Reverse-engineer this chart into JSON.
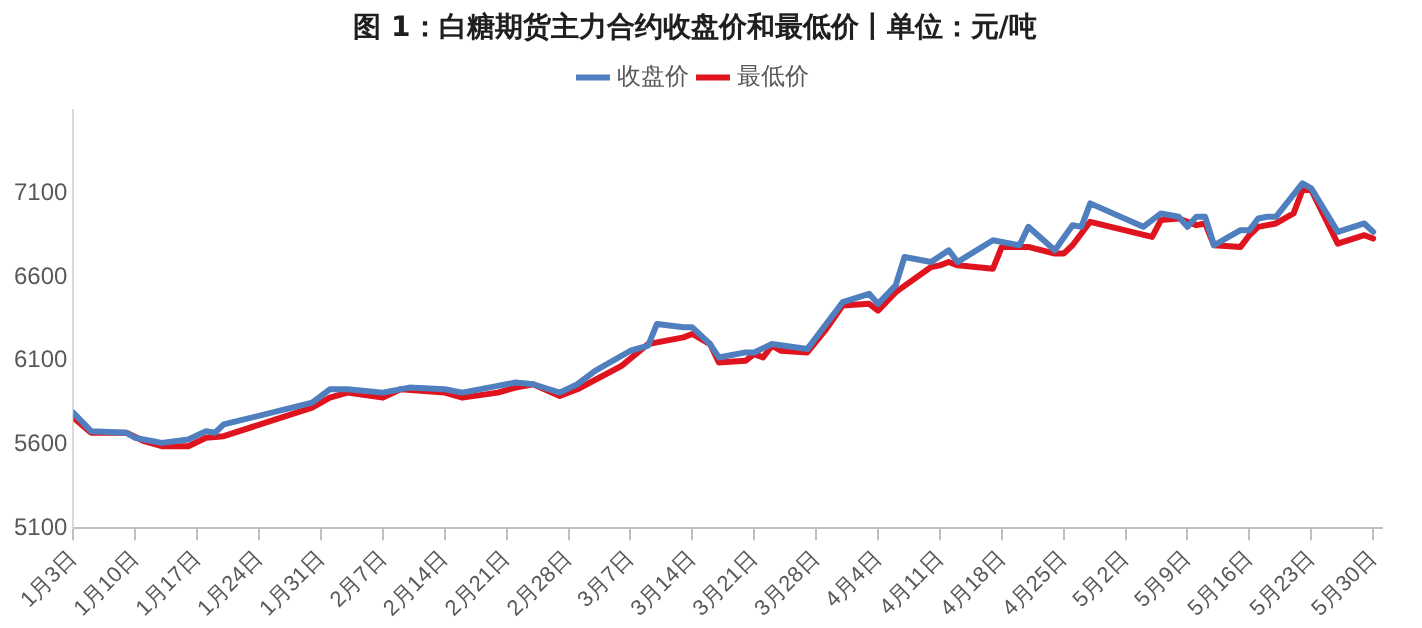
{
  "chart_data": {
    "type": "line",
    "title": "图 1：白糖期货主力合约收盘价和最低价丨单位：元/吨",
    "xlim": [
      "--01-03",
      "--05-31"
    ],
    "xticks": [
      {
        "value": "--01-03",
        "label": "1月3日"
      },
      {
        "value": "--01-10",
        "label": "1月10日"
      },
      {
        "value": "--01-17",
        "label": "1月17日"
      },
      {
        "value": "--01-24",
        "label": "1月24日"
      },
      {
        "value": "--01-31",
        "label": "1月31日"
      },
      {
        "value": "--02-07",
        "label": "2月7日"
      },
      {
        "value": "--02-14",
        "label": "2月14日"
      },
      {
        "value": "--02-21",
        "label": "2月21日"
      },
      {
        "value": "--02-28",
        "label": "2月28日"
      },
      {
        "value": "--03-07",
        "label": "3月7日"
      },
      {
        "value": "--03-14",
        "label": "3月14日"
      },
      {
        "value": "--03-21",
        "label": "3月21日"
      },
      {
        "value": "--03-28",
        "label": "3月28日"
      },
      {
        "value": "--04-04",
        "label": "4月4日"
      },
      {
        "value": "--04-11",
        "label": "4月11日"
      },
      {
        "value": "--04-18",
        "label": "4月18日"
      },
      {
        "value": "--04-25",
        "label": "4月25日"
      },
      {
        "value": "--05-02",
        "label": "5月2日"
      },
      {
        "value": "--05-09",
        "label": "5月9日"
      },
      {
        "value": "--05-16",
        "label": "5月16日"
      },
      {
        "value": "--05-23",
        "label": "5月23日"
      },
      {
        "value": "--05-30",
        "label": "5月30日"
      }
    ],
    "ylim": [
      5100,
      7600
    ],
    "yticks": [
      5100,
      5600,
      6100,
      6600,
      7100
    ],
    "grid": false,
    "legend": "top",
    "marker": "none",
    "line_style": "solid",
    "series": [
      {
        "name": "收盘价",
        "color": "#4f7fbf",
        "x": [
          "--01-03",
          "--01-05",
          "--01-09",
          "--01-10",
          "--01-12",
          "--01-13",
          "--01-16",
          "--01-18",
          "--01-19",
          "--01-20",
          "--01-30",
          "--02-01",
          "--02-03",
          "--02-07",
          "--02-10",
          "--02-14",
          "--02-16",
          "--02-20",
          "--02-22",
          "--02-24",
          "--02-27",
          "--03-01",
          "--03-03",
          "--03-07",
          "--03-09",
          "--03-10",
          "--03-13",
          "--03-14",
          "--03-16",
          "--03-17",
          "--03-20",
          "--03-21",
          "--03-23",
          "--03-27",
          "--03-31",
          "--04-03",
          "--04-04",
          "--04-06",
          "--04-07",
          "--04-10",
          "--04-12",
          "--04-13",
          "--04-17",
          "--04-20",
          "--04-21",
          "--04-24",
          "--04-26",
          "--04-27",
          "--04-28",
          "--05-04",
          "--05-06",
          "--05-08",
          "--05-09",
          "--05-10",
          "--05-11",
          "--05-12",
          "--05-15",
          "--05-16",
          "--05-17",
          "--05-18",
          "--05-19",
          "--05-22",
          "--05-23",
          "--05-26",
          "--05-29",
          "--05-30"
        ],
        "values": [
          5790,
          5680,
          5670,
          5640,
          5620,
          5610,
          5630,
          5680,
          5670,
          5720,
          5850,
          5930,
          5930,
          5910,
          5940,
          5930,
          5910,
          5950,
          5970,
          5960,
          5910,
          5960,
          6040,
          6160,
          6190,
          6320,
          6300,
          6300,
          6200,
          6120,
          6150,
          6150,
          6200,
          6170,
          6450,
          6500,
          6440,
          6550,
          6720,
          6690,
          6760,
          6690,
          6820,
          6790,
          6900,
          6760,
          6910,
          6900,
          7040,
          6900,
          6980,
          6960,
          6900,
          6960,
          6960,
          6790,
          6880,
          6880,
          6950,
          6960,
          6960,
          7160,
          7130,
          6870,
          6920,
          6870
        ]
      },
      {
        "name": "最低价",
        "color": "#e0141e",
        "x": [
          "--01-03",
          "--01-05",
          "--01-09",
          "--01-11",
          "--01-13",
          "--01-16",
          "--01-18",
          "--01-20",
          "--01-30",
          "--02-01",
          "--02-03",
          "--02-07",
          "--02-09",
          "--02-14",
          "--02-16",
          "--02-20",
          "--02-22",
          "--02-24",
          "--02-27",
          "--03-01",
          "--03-06",
          "--03-09",
          "--03-10",
          "--03-13",
          "--03-14",
          "--03-16",
          "--03-17",
          "--03-20",
          "--03-21",
          "--03-22",
          "--03-23",
          "--03-24",
          "--03-27",
          "--03-29",
          "--03-31",
          "--04-03",
          "--04-04",
          "--04-06",
          "--04-10",
          "--04-11",
          "--04-12",
          "--04-13",
          "--04-17",
          "--04-18",
          "--04-20",
          "--04-21",
          "--04-24",
          "--04-25",
          "--04-26",
          "--04-28",
          "--05-05",
          "--05-06",
          "--05-08",
          "--05-10",
          "--05-11",
          "--05-12",
          "--05-15",
          "--05-16",
          "--05-17",
          "--05-19",
          "--05-21",
          "--05-22",
          "--05-23",
          "--05-26",
          "--05-29",
          "--05-30"
        ],
        "values": [
          5760,
          5670,
          5670,
          5620,
          5590,
          5590,
          5640,
          5650,
          5820,
          5880,
          5910,
          5880,
          5930,
          5910,
          5880,
          5910,
          5940,
          5960,
          5890,
          5930,
          6070,
          6200,
          6210,
          6240,
          6260,
          6200,
          6090,
          6100,
          6140,
          6120,
          6190,
          6160,
          6150,
          6280,
          6430,
          6440,
          6400,
          6510,
          6660,
          6670,
          6690,
          6670,
          6650,
          6780,
          6780,
          6780,
          6740,
          6740,
          6790,
          6930,
          6840,
          6940,
          6950,
          6910,
          6920,
          6790,
          6780,
          6850,
          6900,
          6920,
          6980,
          7120,
          7120,
          6800,
          6850,
          6830
        ]
      }
    ]
  }
}
